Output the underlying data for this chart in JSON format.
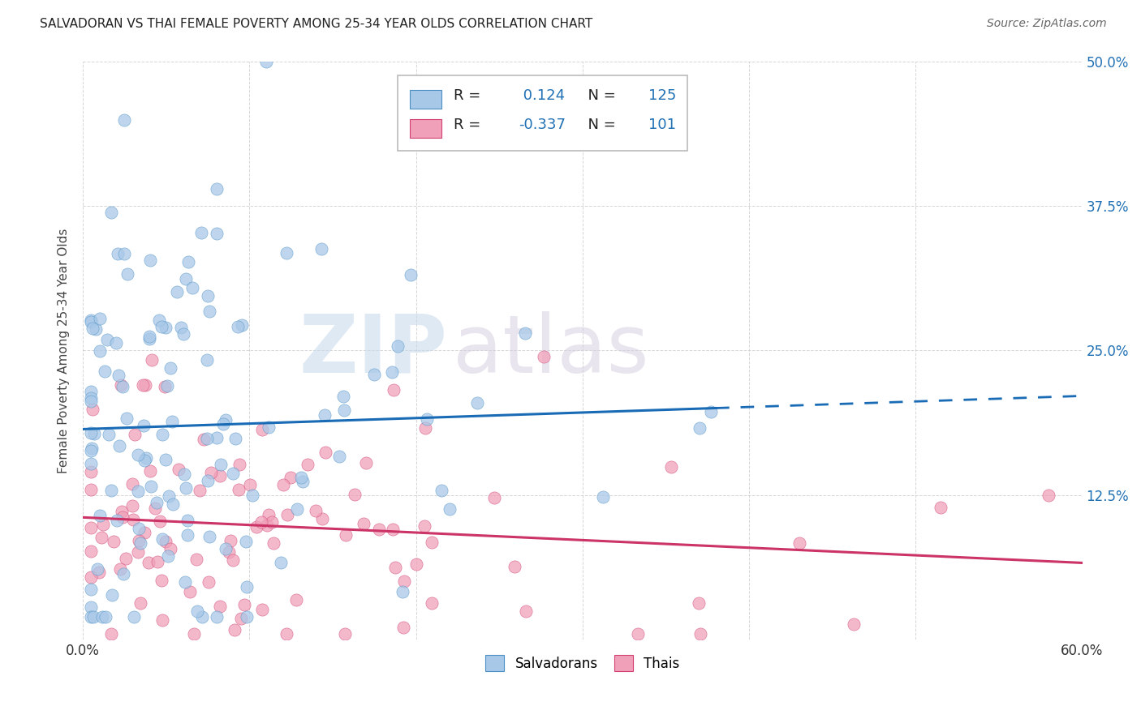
{
  "title": "SALVADORAN VS THAI FEMALE POVERTY AMONG 25-34 YEAR OLDS CORRELATION CHART",
  "source": "Source: ZipAtlas.com",
  "ylabel": "Female Poverty Among 25-34 Year Olds",
  "xlim": [
    0.0,
    0.6
  ],
  "ylim": [
    0.0,
    0.5
  ],
  "xtick_vals": [
    0.0,
    0.1,
    0.2,
    0.3,
    0.4,
    0.5,
    0.6
  ],
  "xticklabels": [
    "0.0%",
    "",
    "",
    "",
    "",
    "",
    "60.0%"
  ],
  "ytick_vals": [
    0.0,
    0.125,
    0.25,
    0.375,
    0.5
  ],
  "yticklabels_right": [
    "",
    "12.5%",
    "25.0%",
    "37.5%",
    "50.0%"
  ],
  "watermark": "ZIPatlas",
  "legend_R1": "0.124",
  "legend_N1": "125",
  "legend_R2": "-0.337",
  "legend_N2": "101",
  "blue_fill": "#a8c8e8",
  "blue_edge": "#4a90c4",
  "pink_fill": "#f0a0b8",
  "pink_edge": "#d04070",
  "blue_line": "#1a6bb5",
  "pink_line": "#cc3366",
  "background_color": "#ffffff",
  "grid_color": "#cccccc",
  "title_color": "#222222",
  "source_color": "#666666",
  "axis_label_color": "#444444",
  "tick_label_color_blue": "#2171b5",
  "watermark_color_zip": "#c8d8e8",
  "watermark_color_atlas": "#d0c8e0"
}
